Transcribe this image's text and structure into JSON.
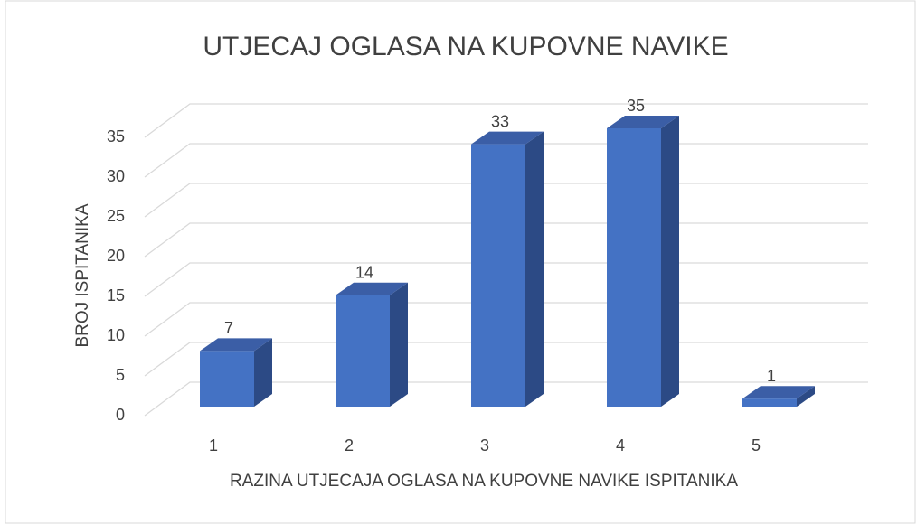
{
  "chart_data": {
    "type": "bar3d",
    "title": "UTJECAJ OGLASA NA KUPOVNE NAVIKE",
    "x_label": "RAZINA UTJECAJA OGLASA NA KUPOVNE NAVIKE ISPITANIKA",
    "y_label": "BROJ ISPITANIKA",
    "categories": [
      "1",
      "2",
      "3",
      "4",
      "5"
    ],
    "values": [
      7,
      14,
      33,
      35,
      1
    ],
    "color": "#4472c4",
    "ylim": [
      0,
      35
    ],
    "yticks": [
      0,
      5,
      10,
      15,
      20,
      25,
      30,
      35
    ],
    "grid": true
  }
}
